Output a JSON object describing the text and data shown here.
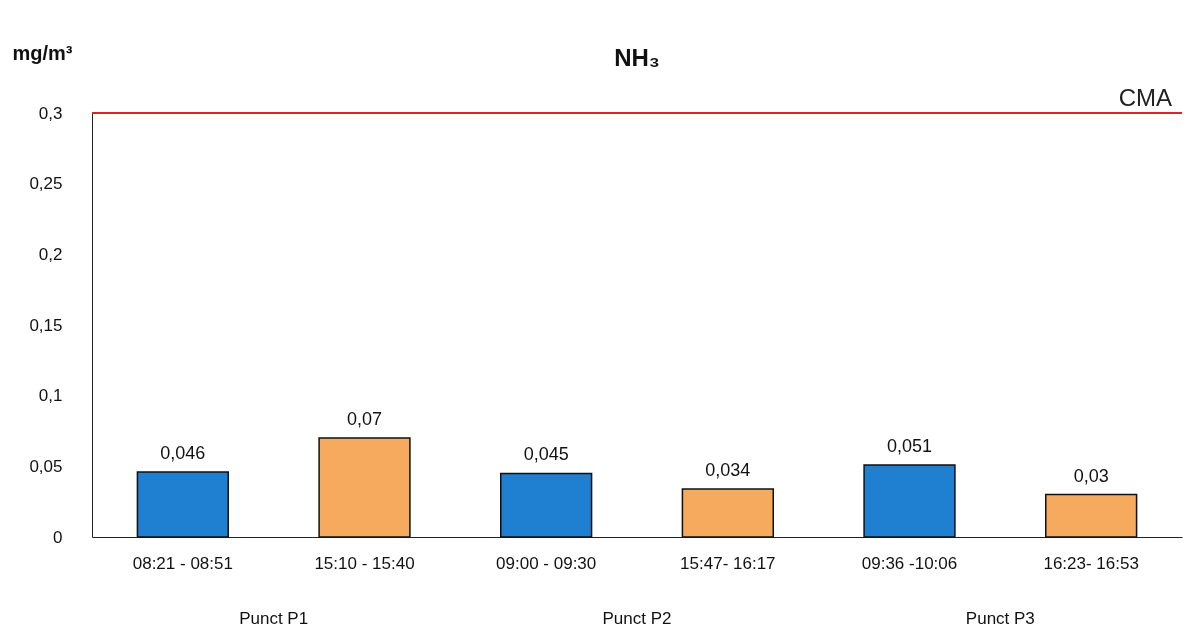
{
  "chart_data": {
    "type": "bar",
    "title": "NH₃",
    "ylabel": "mg/m³",
    "categories": [
      "08:21 - 08:51",
      "15:10 - 15:40",
      "09:00 - 09:30",
      "15:47- 16:17",
      "09:36 -10:06",
      "16:23- 16:53"
    ],
    "values": [
      0.046,
      0.07,
      0.045,
      0.034,
      0.051,
      0.03
    ],
    "colors": [
      "#1f7fd0",
      "#f5aa5e",
      "#1f7fd0",
      "#f5aa5e",
      "#1f7fd0",
      "#f5aa5e"
    ],
    "value_labels": [
      "0,046",
      "0,07",
      "0,045",
      "0,034",
      "0,051",
      "0,03"
    ],
    "ylim": [
      0,
      0.3
    ],
    "yticks": [
      {
        "value": 0,
        "label": "0"
      },
      {
        "value": 0.05,
        "label": "0,05"
      },
      {
        "value": 0.1,
        "label": "0,1"
      },
      {
        "value": 0.15,
        "label": "0,15"
      },
      {
        "value": 0.2,
        "label": "0,2"
      },
      {
        "value": 0.25,
        "label": "0,25"
      },
      {
        "value": 0.3,
        "label": "0,3"
      }
    ],
    "ref_lines": [
      {
        "axis": "y",
        "value": 0.3,
        "label": "CMA",
        "color": "#d62728"
      }
    ],
    "annotations": [
      "Punct P1",
      "Punct P2",
      "Punct P3"
    ],
    "grid": false
  }
}
